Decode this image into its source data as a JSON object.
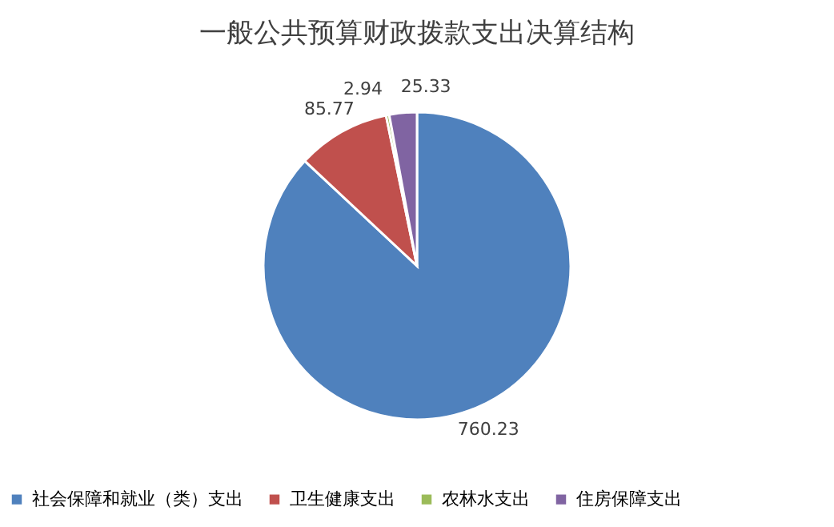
{
  "chart_data": {
    "type": "pie",
    "title": "一般公共预算财政拨款支出决算结构",
    "categories": [
      "社会保障和就业（类）支出",
      "卫生健康支出",
      "农林水支出",
      "住房保障支出"
    ],
    "values": [
      760.23,
      85.77,
      2.94,
      25.33
    ],
    "colors": [
      "#4f81bd",
      "#c0504d",
      "#9bbb59",
      "#8064a2"
    ],
    "data_labels": true,
    "legend": "bottom"
  }
}
